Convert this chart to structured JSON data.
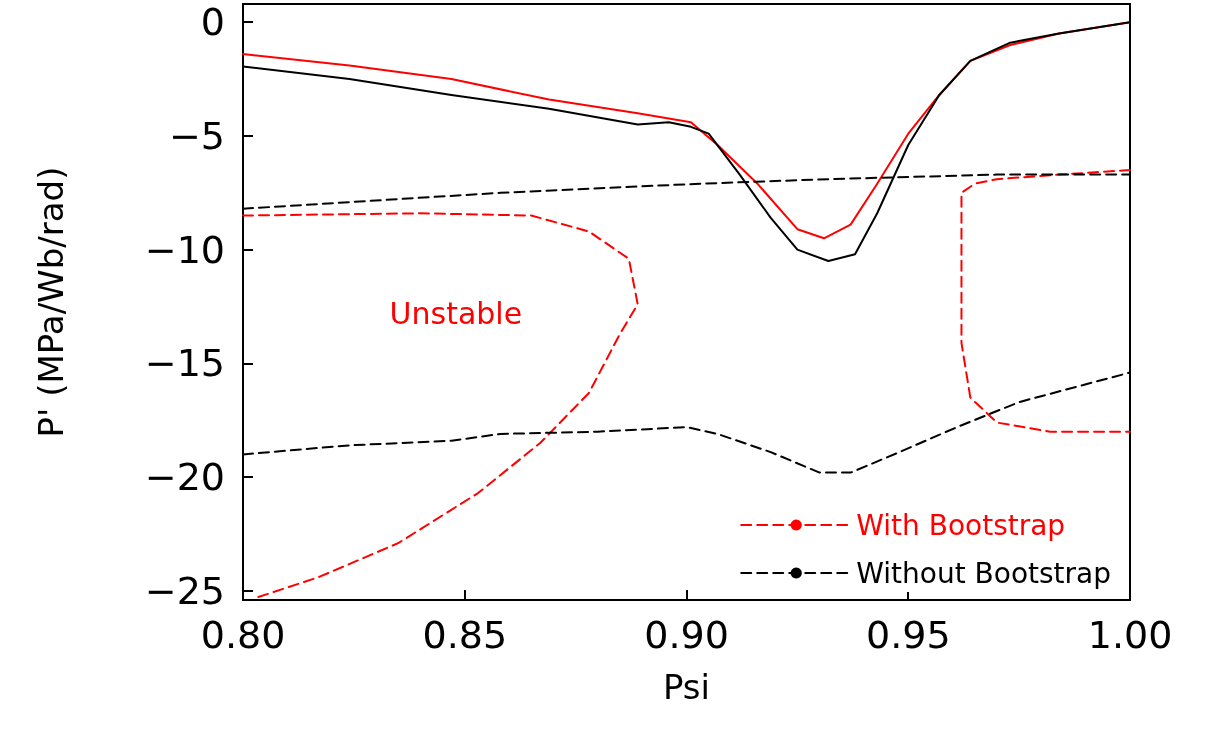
{
  "chart_data": {
    "type": "line",
    "xlabel": "Psi",
    "ylabel": "P' (MPa/Wb/rad)",
    "xlim": [
      0.8,
      1.0
    ],
    "xticks": [
      {
        "value": 0.8,
        "label": "0.80"
      },
      {
        "value": 0.85,
        "label": "0.85"
      },
      {
        "value": 0.9,
        "label": "0.90"
      },
      {
        "value": 0.95,
        "label": "0.95"
      },
      {
        "value": 1.0,
        "label": "1.00"
      }
    ],
    "ylim": [
      -25.4,
      0.8
    ],
    "yticks": [
      -25,
      -20,
      -15,
      -10,
      -5,
      0
    ],
    "grid": false,
    "legend": "bottom right",
    "marker": "none",
    "annotations": [
      "Unstable"
    ],
    "series": [
      {
        "color": "#ff0000",
        "line_style": "solid",
        "x": [
          0.8,
          0.824,
          0.847,
          0.869,
          0.889,
          0.901,
          0.907,
          0.916,
          0.925,
          0.931,
          0.937,
          0.943,
          0.95,
          0.957,
          0.964,
          0.973,
          0.984,
          1.0
        ],
        "values": [
          -1.4,
          -1.9,
          -2.5,
          -3.4,
          -4.0,
          -4.4,
          -5.4,
          -7.1,
          -9.1,
          -9.5,
          -8.9,
          -7.1,
          -4.9,
          -3.2,
          -1.7,
          -1.0,
          -0.5,
          0
        ]
      },
      {
        "color": "#000000",
        "line_style": "solid",
        "x": [
          0.8,
          0.824,
          0.847,
          0.869,
          0.889,
          0.896,
          0.901,
          0.905,
          0.912,
          0.919,
          0.925,
          0.932,
          0.938,
          0.943,
          0.95,
          0.957,
          0.964,
          0.973,
          0.984,
          1.0
        ],
        "values": [
          -1.95,
          -2.5,
          -3.2,
          -3.8,
          -4.5,
          -4.4,
          -4.6,
          -4.9,
          -6.7,
          -8.6,
          -10.0,
          -10.5,
          -10.2,
          -8.4,
          -5.4,
          -3.2,
          -1.7,
          -0.9,
          -0.5,
          0
        ]
      },
      {
        "name": "With Bootstrap",
        "color": "#ff0000",
        "line_style": "dashed",
        "x": [
          0.8,
          0.84,
          0.865,
          0.878,
          0.887,
          0.889,
          0.885,
          0.878,
          0.867,
          0.853,
          0.835,
          0.817,
          0.803
        ],
        "values": [
          -8.5,
          -8.4,
          -8.5,
          -9.2,
          -10.4,
          -12.4,
          -13.7,
          -16.3,
          -18.5,
          -20.7,
          -22.9,
          -24.4,
          -25.3
        ]
      },
      {
        "color": "#ff0000",
        "line_style": "dashed",
        "x": [
          1.0,
          0.984,
          0.97,
          0.965,
          0.962,
          0.962,
          0.964,
          0.97,
          0.982,
          1.0
        ],
        "values": [
          -6.5,
          -6.7,
          -6.9,
          -7.1,
          -7.5,
          -14.1,
          -16.5,
          -17.6,
          -18.0,
          -18.0
        ]
      },
      {
        "name": "Without Bootstrap",
        "color": "#000000",
        "line_style": "dashed",
        "x": [
          0.8,
          0.824,
          0.847,
          0.858,
          0.88,
          0.9,
          0.907,
          0.919,
          0.93,
          0.937,
          0.948,
          0.961,
          0.975,
          1.0
        ],
        "values": [
          -19.0,
          -18.6,
          -18.4,
          -18.1,
          -18.0,
          -17.8,
          -18.1,
          -18.9,
          -19.8,
          -19.8,
          -18.9,
          -17.8,
          -16.7,
          -15.4
        ]
      },
      {
        "color": "#000000",
        "line_style": "dashed",
        "x": [
          0.8,
          0.858,
          0.903,
          0.932,
          0.97,
          1.0
        ],
        "values": [
          -8.2,
          -7.5,
          -7.1,
          -6.9,
          -6.7,
          -6.7
        ]
      }
    ]
  }
}
